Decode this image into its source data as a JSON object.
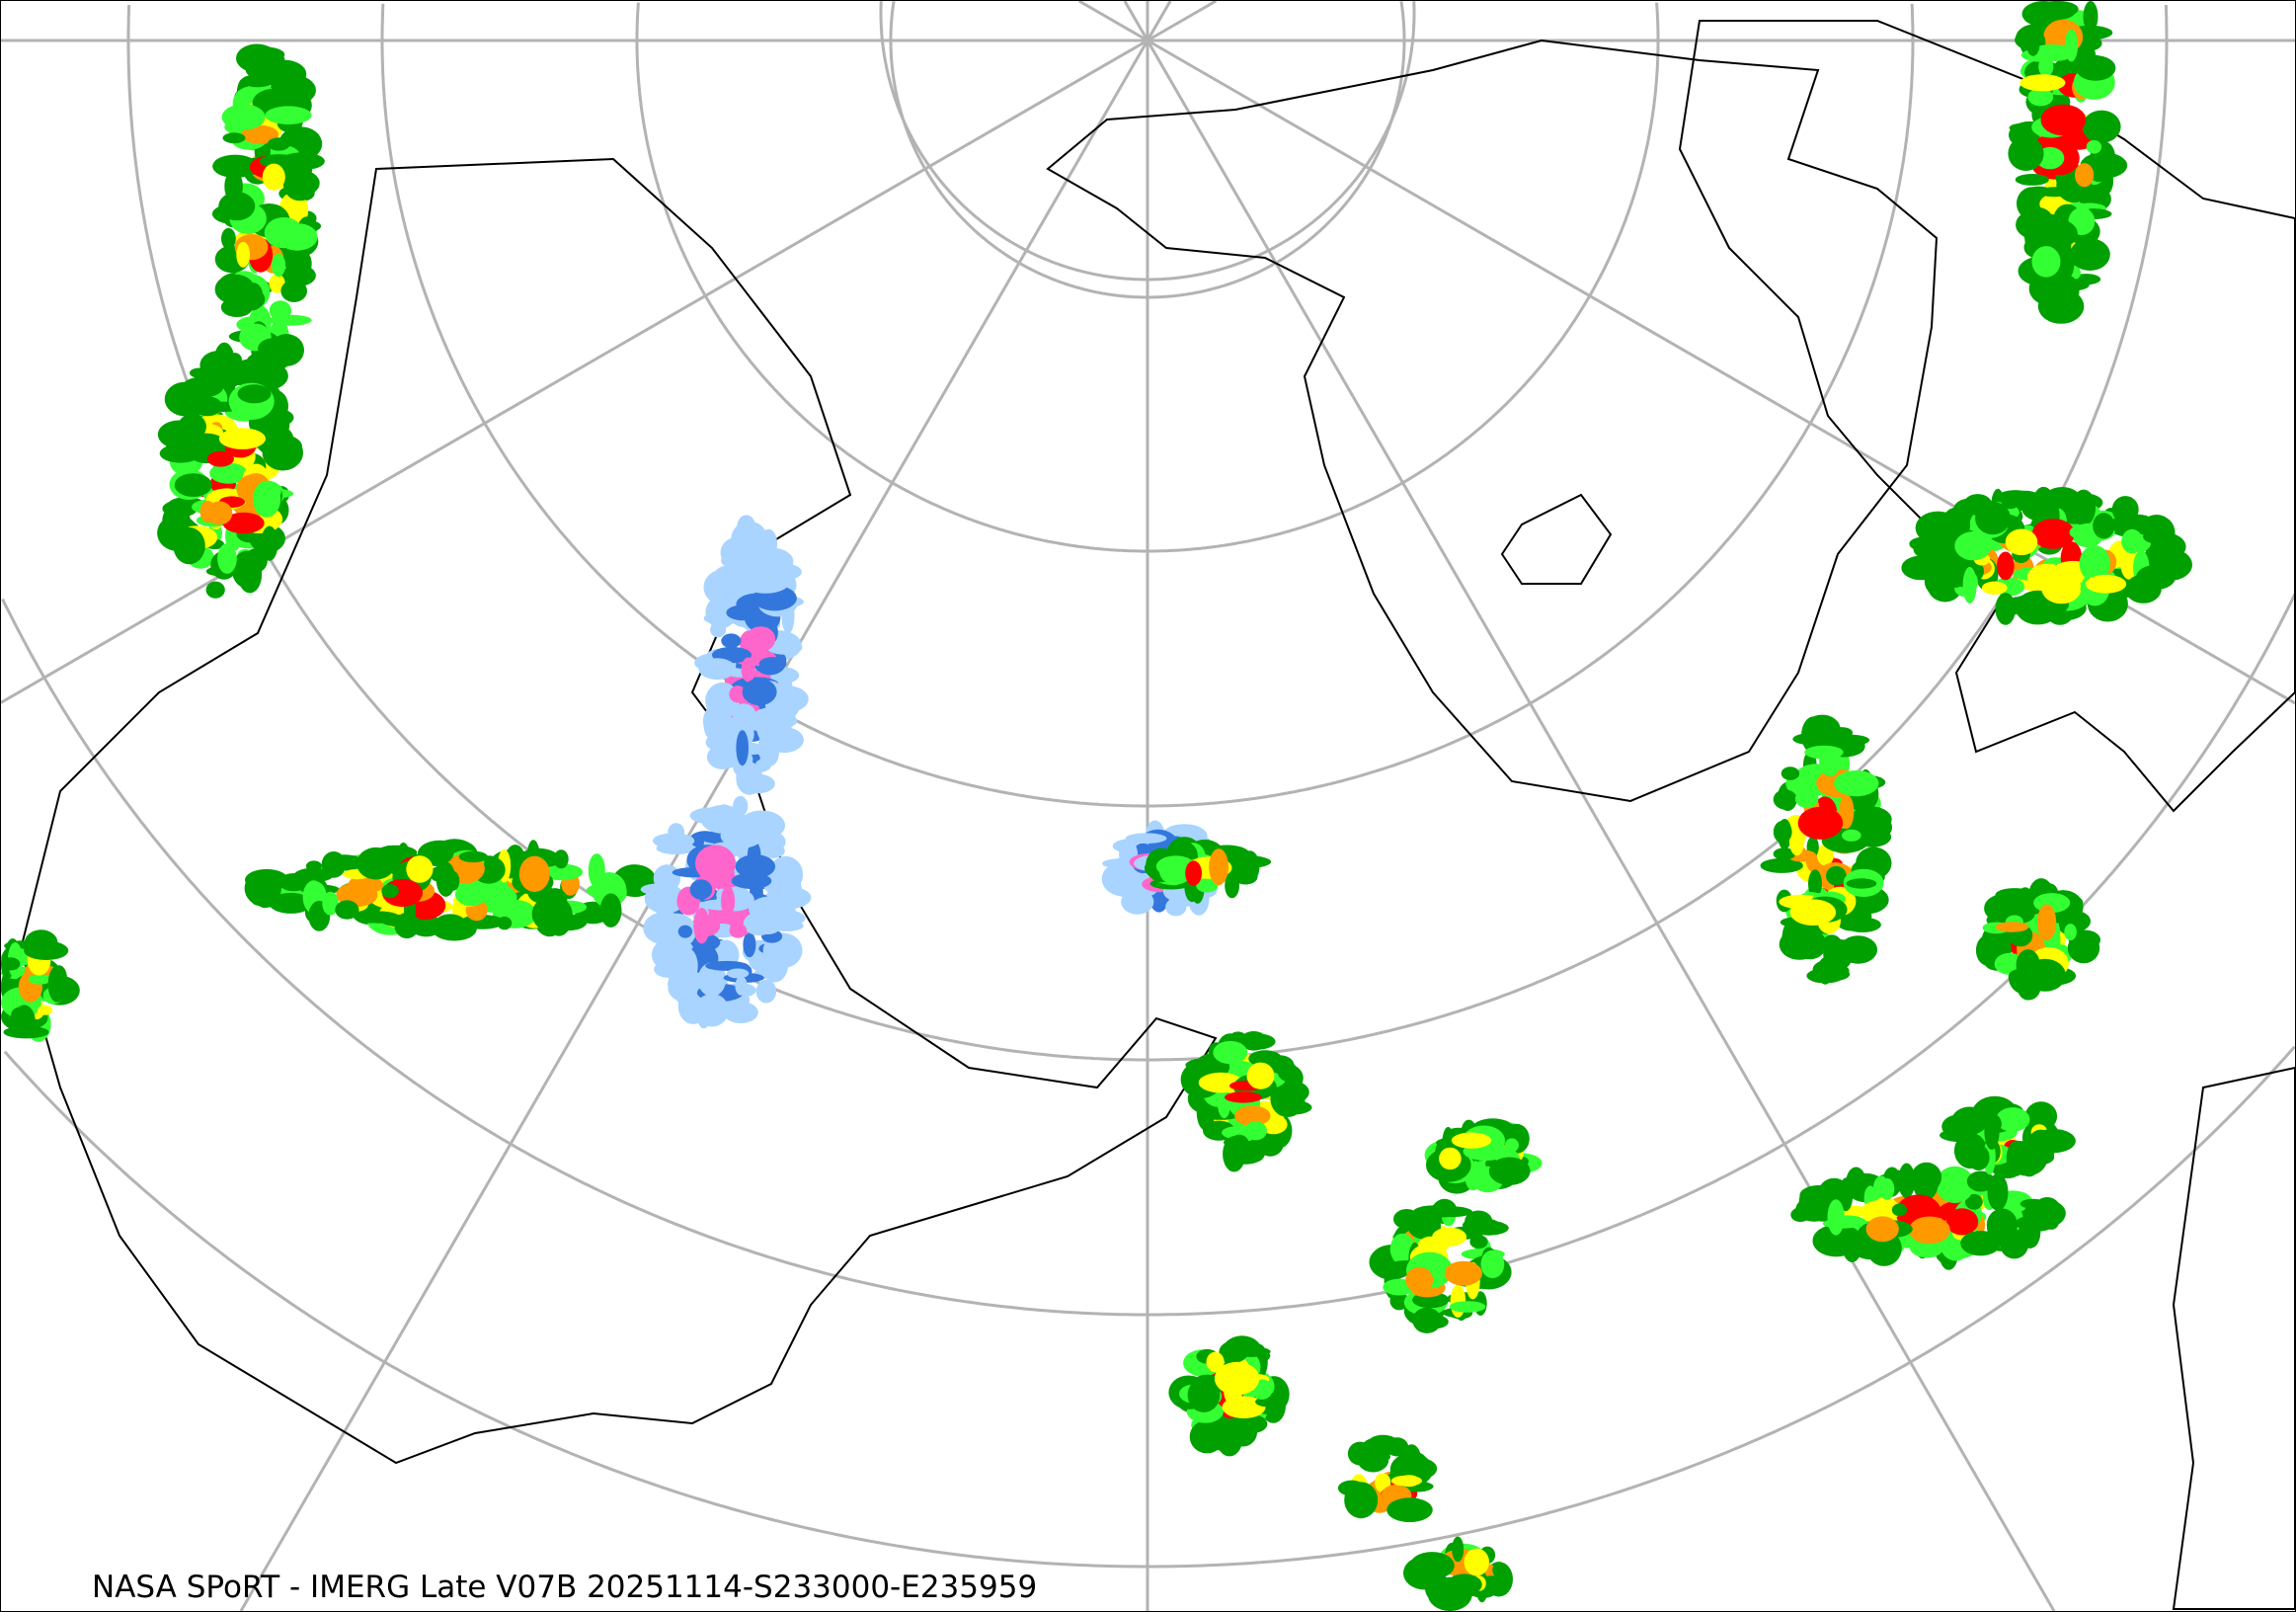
{
  "caption": "NASA SPoRT - IMERG Late V07B 20251114-S233000-E235959",
  "colors": {
    "graticule": "#b3b3b3",
    "coastline": "#000000",
    "rain_light": "#00a000",
    "rain_moderate": "#33ff33",
    "rain_heavy": "#ffff00",
    "rain_intense": "#ff9900",
    "rain_extreme": "#ff0000",
    "snow_light": "#a8d4ff",
    "snow_moderate": "#3377dd",
    "snow_heavy": "#ff66cc"
  },
  "map": {
    "projection": "polar stereographic",
    "product": "IMERG Late precipitation"
  }
}
